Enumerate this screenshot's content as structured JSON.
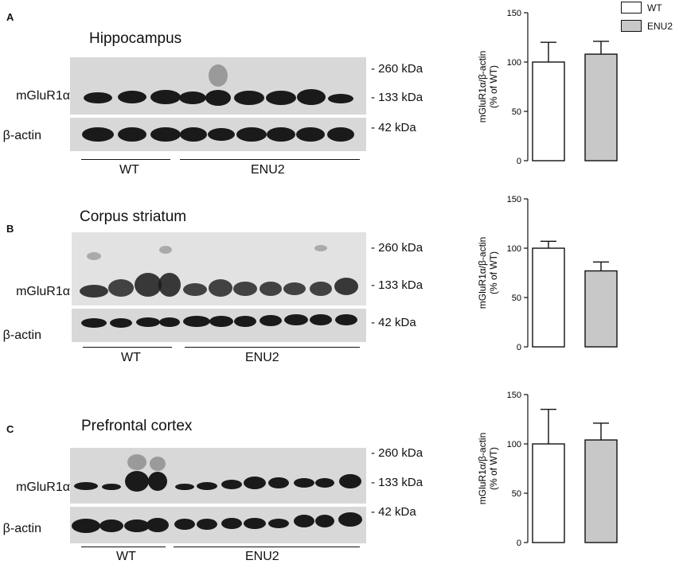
{
  "panels": [
    {
      "letter": "A",
      "region": "Hippocampus",
      "row_labels": [
        "mGluR1α",
        "β-actin"
      ],
      "markers": [
        "- 260 kDa",
        "- 133 kDa",
        "- 42 kDa"
      ],
      "groups": [
        "WT",
        "ENU2"
      ],
      "chart": {
        "ylabel_line1": "mGluR1α/β-actin",
        "ylabel_line2": "(% of WT)",
        "ticks": [
          "150",
          "100",
          "50",
          "0"
        ]
      }
    },
    {
      "letter": "B",
      "region": "Corpus striatum",
      "row_labels": [
        "mGluR1α",
        "β-actin"
      ],
      "markers": [
        "- 260 kDa",
        "- 133 kDa",
        "- 42 kDa"
      ],
      "groups": [
        "WT",
        "ENU2"
      ],
      "chart": {
        "ylabel_line1": "mGluR1α/β-actin",
        "ylabel_line2": "(% of WT)",
        "ticks": [
          "150",
          "100",
          "50",
          "0"
        ]
      }
    },
    {
      "letter": "C",
      "region": "Prefrontal cortex",
      "row_labels": [
        "mGluR1α",
        "β-actin"
      ],
      "markers": [
        "- 260 kDa",
        "- 133 kDa",
        "- 42 kDa"
      ],
      "groups": [
        "WT",
        "ENU2"
      ],
      "chart": {
        "ylabel_line1": "mGluR1α/β-actin",
        "ylabel_line2": "(% of WT)",
        "ticks": [
          "150",
          "100",
          "50",
          "0"
        ]
      }
    }
  ],
  "legend": [
    "WT",
    "ENU2"
  ],
  "colors": {
    "wt_fill": "#ffffff",
    "enu2_fill": "#c8c8c8",
    "band": "#1a1a1a",
    "blot_bg": "#d8d8d8"
  },
  "chart_data": [
    {
      "type": "bar",
      "categories": [
        "WT",
        "ENU2"
      ],
      "values": [
        100,
        108
      ],
      "errors": [
        20,
        13
      ],
      "ylim": [
        0,
        150
      ],
      "ylabel": "mGluR1α/β-actin (% of WT)"
    },
    {
      "type": "bar",
      "categories": [
        "WT",
        "ENU2"
      ],
      "values": [
        100,
        77
      ],
      "errors": [
        7,
        9
      ],
      "ylim": [
        0,
        150
      ],
      "ylabel": "mGluR1α/β-actin (% of WT)"
    },
    {
      "type": "bar",
      "categories": [
        "WT",
        "ENU2"
      ],
      "values": [
        100,
        104
      ],
      "errors": [
        35,
        17
      ],
      "ylim": [
        0,
        150
      ],
      "ylabel": "mGluR1α/β-actin (% of WT)"
    }
  ]
}
